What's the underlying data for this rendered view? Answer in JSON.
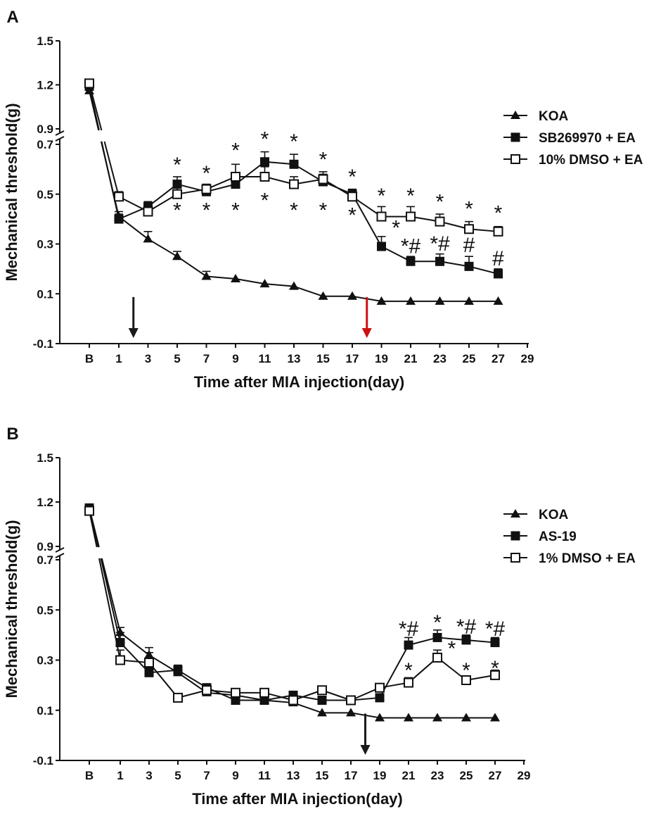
{
  "chart_data": [
    {
      "type": "line",
      "panel_label": "A",
      "xlabel": "Time after MIA injection(day)",
      "ylabel": "Mechanical threshold(g)",
      "x_tick_labels": [
        "B",
        "1",
        "3",
        "5",
        "7",
        "9",
        "11",
        "13",
        "15",
        "17",
        "19",
        "21",
        "23",
        "25",
        "27",
        "29"
      ],
      "y_ticks_upper": [
        "1.5",
        "1.2",
        "0.9"
      ],
      "y_ticks_lower": [
        "0.7",
        "0.5",
        "0.3",
        "0.1",
        "-0.1"
      ],
      "y_axis_break": [
        0.7,
        0.9
      ],
      "ylim": [
        -0.1,
        1.5
      ],
      "x": [
        "B",
        1,
        3,
        5,
        7,
        9,
        11,
        13,
        15,
        17,
        19,
        21,
        23,
        25,
        27
      ],
      "series": [
        {
          "name": "KOA",
          "marker": "triangle-filled",
          "values": [
            1.16,
            0.41,
            0.32,
            0.25,
            0.17,
            0.16,
            0.14,
            0.13,
            0.09,
            0.09,
            0.07,
            0.07,
            0.07,
            0.07,
            0.07
          ],
          "errors": [
            0.02,
            0.02,
            0.03,
            0.02,
            0.02,
            0,
            0,
            0,
            0,
            0,
            0,
            0,
            0,
            0,
            0
          ]
        },
        {
          "name": "SB269970 + EA",
          "marker": "square-filled",
          "values": [
            1.19,
            0.4,
            0.45,
            0.54,
            0.51,
            0.54,
            0.63,
            0.62,
            0.55,
            0.5,
            0.29,
            0.23,
            0.23,
            0.21,
            0.18
          ],
          "errors": [
            0.02,
            0.02,
            0.02,
            0.03,
            0.02,
            0.03,
            0.04,
            0.04,
            0.03,
            0.02,
            0.04,
            0.02,
            0.03,
            0.04,
            0.02
          ]
        },
        {
          "name": "10% DMSO + EA",
          "marker": "square-open",
          "values": [
            1.21,
            0.49,
            0.43,
            0.5,
            0.52,
            0.57,
            0.57,
            0.54,
            0.56,
            0.49,
            0.41,
            0.41,
            0.39,
            0.36,
            0.35
          ],
          "errors": [
            0.02,
            0.02,
            0.02,
            0.03,
            0.02,
            0.05,
            0.04,
            0.03,
            0.03,
            0.02,
            0.04,
            0.04,
            0.03,
            0.03,
            0.02
          ]
        }
      ],
      "annotations": [
        {
          "text": "*",
          "x": 5,
          "y": 0.612
        },
        {
          "text": "*",
          "x": 5,
          "y": 0.43
        },
        {
          "text": "*",
          "x": 7,
          "y": 0.578
        },
        {
          "text": "*",
          "x": 7,
          "y": 0.43
        },
        {
          "text": "*",
          "x": 9,
          "y": 0.67
        },
        {
          "text": "*",
          "x": 9,
          "y": 0.43
        },
        {
          "text": "*",
          "x": 11,
          "y": 0.715
        },
        {
          "text": "*",
          "x": 11,
          "y": 0.47
        },
        {
          "text": "*",
          "x": 13,
          "y": 0.706
        },
        {
          "text": "*",
          "x": 13,
          "y": 0.43
        },
        {
          "text": "*",
          "x": 15,
          "y": 0.634
        },
        {
          "text": "*",
          "x": 15,
          "y": 0.43
        },
        {
          "text": "*",
          "x": 17,
          "y": 0.564
        },
        {
          "text": "*",
          "x": 17,
          "y": 0.41
        },
        {
          "text": "*",
          "x": 19,
          "y": 0.488
        },
        {
          "text": "*",
          "x": 20,
          "y": 0.359
        },
        {
          "text": "*",
          "x": 21,
          "y": 0.488
        },
        {
          "text": "*#",
          "x": 21,
          "y": 0.286
        },
        {
          "text": "*",
          "x": 23,
          "y": 0.464
        },
        {
          "text": "*#",
          "x": 23,
          "y": 0.295
        },
        {
          "text": "*",
          "x": 25,
          "y": 0.436
        },
        {
          "text": "#",
          "x": 25,
          "y": 0.29
        },
        {
          "text": "*",
          "x": 27,
          "y": 0.418
        },
        {
          "text": "#",
          "x": 27,
          "y": 0.236
        }
      ],
      "arrows": [
        {
          "x": 2,
          "color": "#1a1a1a"
        },
        {
          "x": 18,
          "color": "#cc1111"
        }
      ]
    },
    {
      "type": "line",
      "panel_label": "B",
      "xlabel": "Time after MIA injection(day)",
      "ylabel": "Mechanical threshold(g)",
      "x_tick_labels": [
        "B",
        "1",
        "3",
        "5",
        "7",
        "9",
        "11",
        "13",
        "15",
        "17",
        "19",
        "21",
        "23",
        "25",
        "27",
        "29"
      ],
      "y_ticks_upper": [
        "1.5",
        "1.2",
        "0.9"
      ],
      "y_ticks_lower": [
        "0.7",
        "0.5",
        "0.3",
        "0.1",
        "-0.1"
      ],
      "y_axis_break": [
        0.7,
        0.9
      ],
      "ylim": [
        -0.1,
        1.5
      ],
      "x": [
        "B",
        1,
        3,
        5,
        7,
        9,
        11,
        13,
        15,
        17,
        19,
        21,
        23,
        25,
        27
      ],
      "series": [
        {
          "name": "KOA",
          "marker": "triangle-filled",
          "values": [
            1.16,
            0.41,
            0.32,
            0.25,
            0.17,
            0.16,
            0.14,
            0.13,
            0.09,
            0.09,
            0.07,
            0.07,
            0.07,
            0.07,
            0.07
          ],
          "errors": [
            0.02,
            0.02,
            0.03,
            0.02,
            0.02,
            0,
            0,
            0,
            0,
            0,
            0,
            0,
            0,
            0,
            0
          ]
        },
        {
          "name": "AS-19",
          "marker": "square-filled",
          "values": [
            1.16,
            0.37,
            0.25,
            0.26,
            0.19,
            0.14,
            0.14,
            0.16,
            0.14,
            0.14,
            0.15,
            0.36,
            0.39,
            0.38,
            0.37
          ],
          "errors": [
            0.02,
            0.04,
            0.02,
            0.02,
            0.01,
            0.01,
            0.01,
            0.01,
            0.01,
            0.01,
            0.01,
            0.03,
            0.03,
            0.02,
            0.02
          ]
        },
        {
          "name": "1% DMSO + EA",
          "marker": "square-open",
          "values": [
            1.14,
            0.3,
            0.29,
            0.15,
            0.18,
            0.17,
            0.17,
            0.14,
            0.18,
            0.14,
            0.19,
            0.21,
            0.31,
            0.22,
            0.24
          ],
          "errors": [
            0.02,
            0.04,
            0.04,
            0.01,
            0.01,
            0.01,
            0.01,
            0.01,
            0.01,
            0.01,
            0.01,
            0.02,
            0.03,
            0.01,
            0.02
          ]
        }
      ],
      "annotations": [
        {
          "text": "*#",
          "x": 21,
          "y": 0.419
        },
        {
          "text": "*",
          "x": 21,
          "y": 0.254
        },
        {
          "text": "*",
          "x": 23,
          "y": 0.445
        },
        {
          "text": "*",
          "x": 24,
          "y": 0.34
        },
        {
          "text": "*#",
          "x": 25,
          "y": 0.428
        },
        {
          "text": "*",
          "x": 25,
          "y": 0.254
        },
        {
          "text": "*#",
          "x": 27,
          "y": 0.419
        },
        {
          "text": "*",
          "x": 27,
          "y": 0.262
        }
      ],
      "arrows": [
        {
          "x": 18,
          "color": "#1a1a1a"
        }
      ]
    }
  ]
}
